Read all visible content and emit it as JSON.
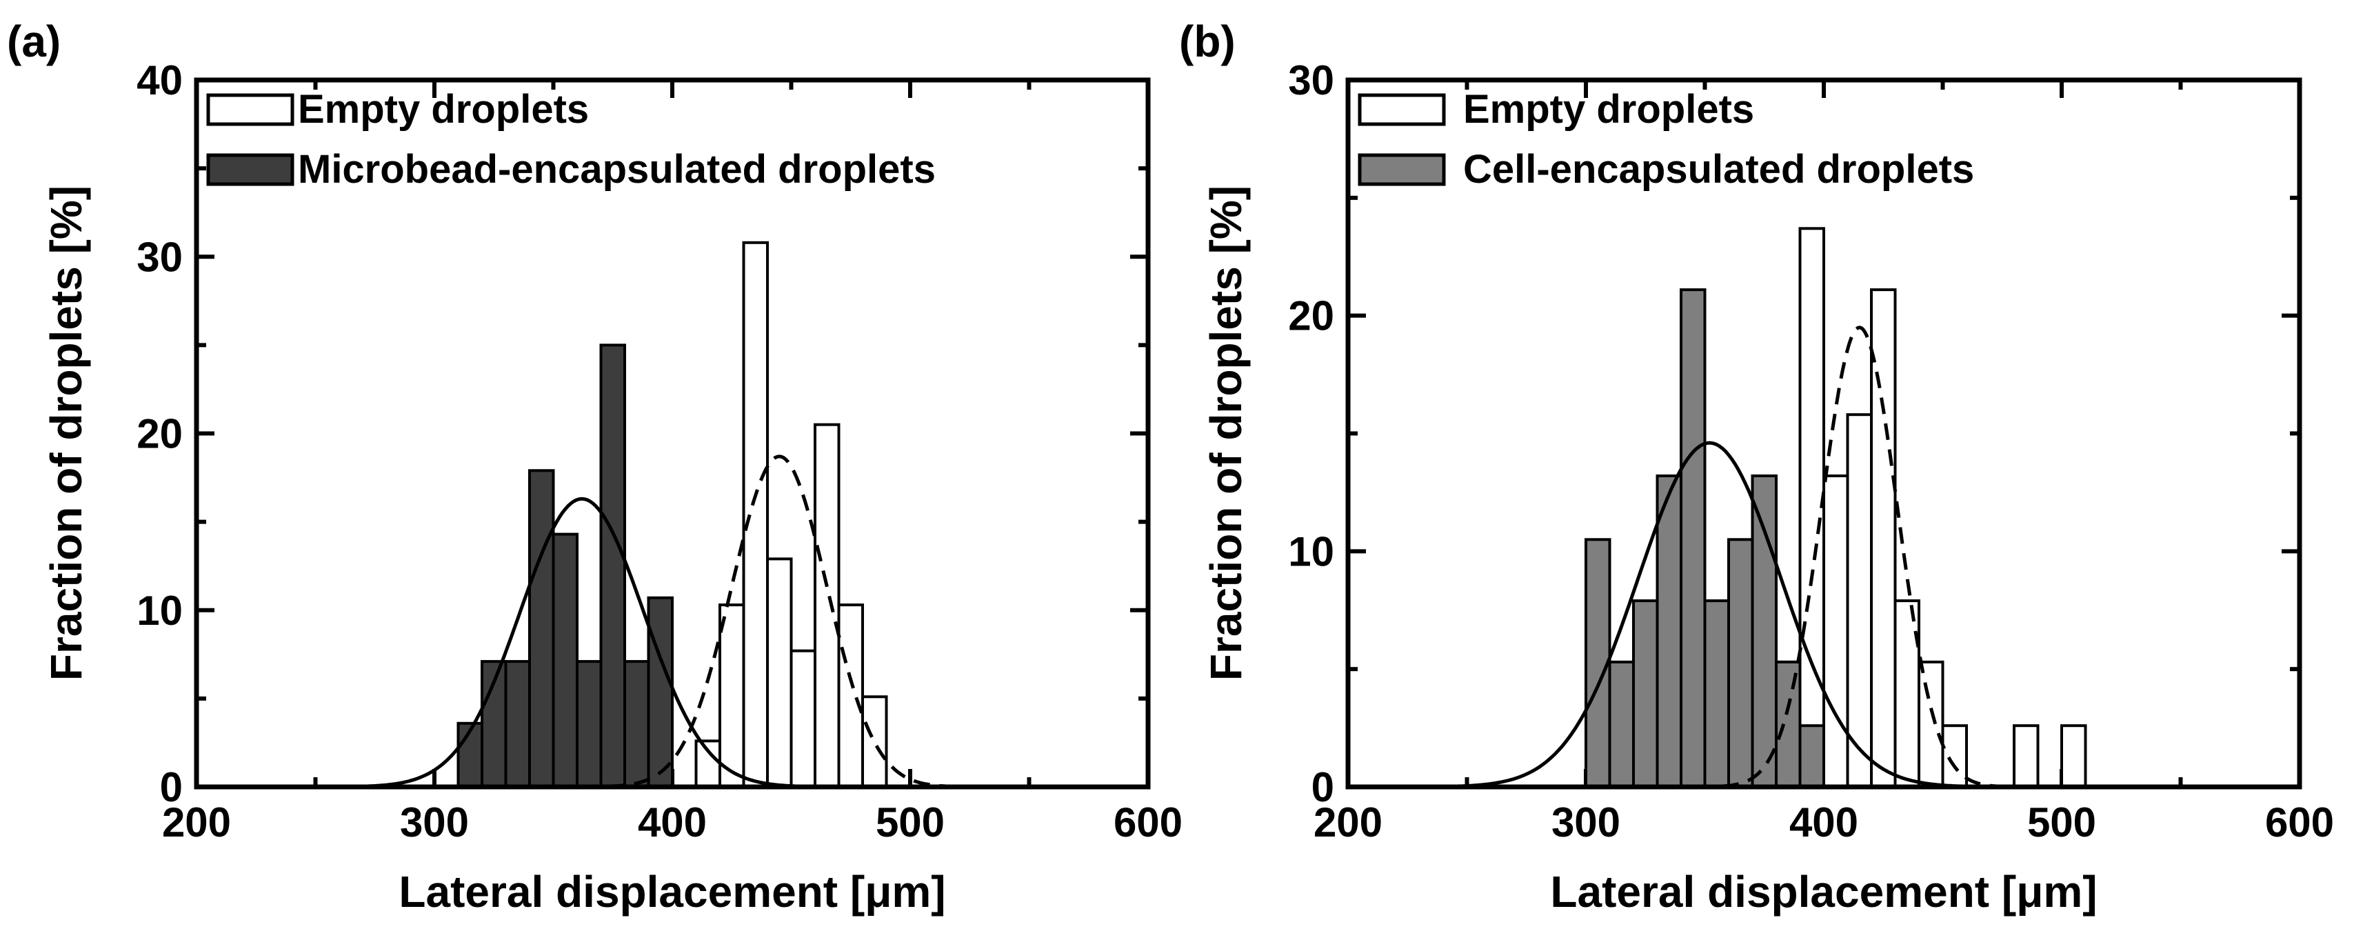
{
  "chart_data": [
    {
      "type": "bar",
      "panel_label": "(a)",
      "xlabel": "Lateral displacement [μm]",
      "ylabel": "Fraction of droplets [%]",
      "xlim": [
        200,
        600
      ],
      "ylim": [
        0,
        40
      ],
      "xticks": [
        200,
        300,
        400,
        500,
        600
      ],
      "yticks": [
        0,
        10,
        20,
        30,
        40
      ],
      "xtick_labels": [
        "200",
        "300",
        "400",
        "500",
        "600"
      ],
      "ytick_labels": [
        "0",
        "10",
        "20",
        "30",
        "40"
      ],
      "bin_width": 10,
      "legend_position": "top-left",
      "series": [
        {
          "name": "Empty droplets",
          "fill": "#ffffff",
          "fit_style": "dashed",
          "fit": {
            "mean": 445,
            "sd": 20,
            "peak": 18.7
          },
          "bins": [
            {
              "start": 410,
              "value": 2.6
            },
            {
              "start": 420,
              "value": 10.3
            },
            {
              "start": 430,
              "value": 30.8
            },
            {
              "start": 440,
              "value": 12.9
            },
            {
              "start": 450,
              "value": 7.7
            },
            {
              "start": 460,
              "value": 20.5
            },
            {
              "start": 470,
              "value": 10.3
            },
            {
              "start": 480,
              "value": 5.1
            }
          ]
        },
        {
          "name": "Microbead-encapsulated droplets",
          "fill": "#3d3d3d",
          "fit_style": "solid",
          "fit": {
            "mean": 362,
            "sd": 26,
            "peak": 16.3
          },
          "bins": [
            {
              "start": 310,
              "value": 3.6
            },
            {
              "start": 320,
              "value": 7.1
            },
            {
              "start": 330,
              "value": 7.1
            },
            {
              "start": 340,
              "value": 17.9
            },
            {
              "start": 350,
              "value": 14.3
            },
            {
              "start": 360,
              "value": 7.1
            },
            {
              "start": 370,
              "value": 25.0
            },
            {
              "start": 380,
              "value": 7.1
            },
            {
              "start": 390,
              "value": 10.7
            }
          ]
        }
      ]
    },
    {
      "type": "bar",
      "panel_label": "(b)",
      "xlabel": "Lateral displacement [μm]",
      "ylabel": "Fraction of droplets [%]",
      "xlim": [
        200,
        600
      ],
      "ylim": [
        0,
        30
      ],
      "xticks": [
        200,
        300,
        400,
        500,
        600
      ],
      "yticks": [
        0,
        10,
        20,
        30
      ],
      "xtick_labels": [
        "200",
        "300",
        "400",
        "500",
        "600"
      ],
      "ytick_labels": [
        "0",
        "10",
        "20",
        "30"
      ],
      "bin_width": 10,
      "legend_position": "top-left",
      "series": [
        {
          "name": "Empty droplets",
          "fill": "#ffffff",
          "fit_style": "dashed",
          "fit": {
            "mean": 415,
            "sd": 16,
            "peak": 19.5
          },
          "bins": [
            {
              "start": 380,
              "value": 5.3
            },
            {
              "start": 390,
              "value": 23.7
            },
            {
              "start": 400,
              "value": 13.2
            },
            {
              "start": 410,
              "value": 15.8
            },
            {
              "start": 420,
              "value": 21.1
            },
            {
              "start": 430,
              "value": 7.9
            },
            {
              "start": 440,
              "value": 5.3
            },
            {
              "start": 450,
              "value": 2.6
            },
            {
              "start": 480,
              "value": 2.6
            },
            {
              "start": 500,
              "value": 2.6
            }
          ]
        },
        {
          "name": "Cell-encapsulated droplets",
          "fill": "#7f7f7f",
          "fit_style": "solid",
          "fit": {
            "mean": 352,
            "sd": 30,
            "peak": 14.6
          },
          "bins": [
            {
              "start": 300,
              "value": 10.5
            },
            {
              "start": 310,
              "value": 5.3
            },
            {
              "start": 320,
              "value": 7.9
            },
            {
              "start": 330,
              "value": 13.2
            },
            {
              "start": 340,
              "value": 21.1
            },
            {
              "start": 350,
              "value": 7.9
            },
            {
              "start": 360,
              "value": 10.5
            },
            {
              "start": 370,
              "value": 13.2
            },
            {
              "start": 380,
              "value": 5.3
            },
            {
              "start": 390,
              "value": 2.6
            }
          ]
        }
      ]
    }
  ]
}
